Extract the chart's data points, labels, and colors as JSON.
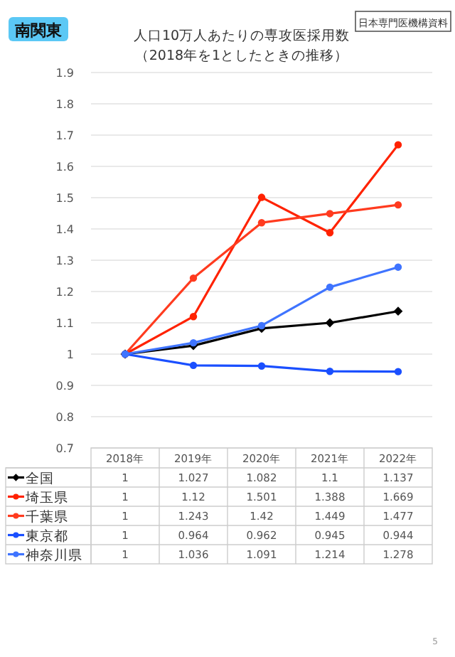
{
  "chart_data": {
    "type": "line",
    "title": "人口10万人あたりの専攻医採用数",
    "subtitle": "（2018年を1としたときの推移）",
    "annotations": [
      "南関東",
      "日本専門医機構資料",
      "5"
    ],
    "categories": [
      "2018年",
      "2019年",
      "2020年",
      "2021年",
      "2022年"
    ],
    "series": [
      {
        "name": "全国",
        "color": "#000000",
        "marker": "diamond",
        "values": [
          1,
          1.027,
          1.082,
          1.1,
          1.137
        ]
      },
      {
        "name": "埼玉県",
        "color": "#ff2200",
        "marker": "circle",
        "values": [
          1,
          1.12,
          1.501,
          1.388,
          1.669
        ]
      },
      {
        "name": "千葉県",
        "color": "#ff3b1f",
        "marker": "circle",
        "values": [
          1,
          1.243,
          1.42,
          1.449,
          1.477
        ]
      },
      {
        "name": "東京都",
        "color": "#1a4fff",
        "marker": "circle",
        "values": [
          1,
          0.964,
          0.962,
          0.945,
          0.944
        ]
      },
      {
        "name": "神奈川県",
        "color": "#3f74ff",
        "marker": "circle",
        "values": [
          1,
          1.036,
          1.091,
          1.214,
          1.278
        ]
      }
    ],
    "ylim": [
      0.7,
      1.9
    ],
    "yticks": [
      0.7,
      0.8,
      0.9,
      1,
      1.1,
      1.2,
      1.3,
      1.4,
      1.5,
      1.6,
      1.7,
      1.8,
      1.9
    ],
    "grid": "y",
    "legend": "bottom",
    "data_labels": true
  }
}
